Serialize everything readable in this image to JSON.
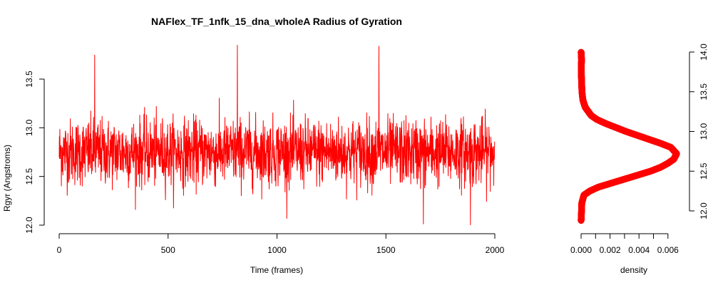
{
  "chart_data": [
    {
      "type": "line",
      "title": "NAFlex_TF_1nfk_15_dna_wholeA Radius of Gyration",
      "xlabel": "Time (frames)",
      "ylabel": "Rgyr (Angstroms)",
      "xlim": [
        0,
        2000
      ],
      "ylim": [
        12.0,
        13.85
      ],
      "x_ticks": [
        "0",
        "500",
        "1000",
        "1500",
        "2000"
      ],
      "y_ticks": [
        "12.0",
        "12.5",
        "13.0",
        "13.5"
      ],
      "series": [
        {
          "color": "#ff0000",
          "frames": 2000,
          "mean": 12.75,
          "min": 12.0,
          "max": 13.85,
          "peaks": [
            {
              "x": 163,
              "y": 13.75
            },
            {
              "x": 818,
              "y": 13.85
            },
            {
              "x": 1468,
              "y": 13.84
            },
            {
              "x": 1672,
              "y": 12.01
            },
            {
              "x": 1888,
              "y": 12.0
            }
          ]
        }
      ]
    },
    {
      "type": "line",
      "title": "",
      "xlabel": "density",
      "ylabel": "",
      "xlim": [
        0,
        0.0066
      ],
      "ylim": [
        11.88,
        14.0
      ],
      "x_ticks": [
        "0.000",
        "0.002",
        "0.004",
        "0.006"
      ],
      "y_ticks": [
        "12.0",
        "12.5",
        "13.0",
        "13.5",
        "14.0"
      ],
      "y_axis_side": "right",
      "series": [
        {
          "color": "#ff0000",
          "marker": "circle",
          "peak": {
            "y": 12.72,
            "density": 0.0066
          },
          "points": [
            {
              "y": 11.88,
              "density": 0.0
            },
            {
              "y": 12.0,
              "density": 3e-05
            },
            {
              "y": 12.1,
              "density": 5e-05
            },
            {
              "y": 12.2,
              "density": 0.0002
            },
            {
              "y": 12.25,
              "density": 0.0006
            },
            {
              "y": 12.3,
              "density": 0.0012
            },
            {
              "y": 12.35,
              "density": 0.0021
            },
            {
              "y": 12.4,
              "density": 0.003
            },
            {
              "y": 12.45,
              "density": 0.0039
            },
            {
              "y": 12.5,
              "density": 0.0048
            },
            {
              "y": 12.55,
              "density": 0.0055
            },
            {
              "y": 12.6,
              "density": 0.006
            },
            {
              "y": 12.65,
              "density": 0.0064
            },
            {
              "y": 12.72,
              "density": 0.0066
            },
            {
              "y": 12.8,
              "density": 0.0062
            },
            {
              "y": 12.85,
              "density": 0.0055
            },
            {
              "y": 12.9,
              "density": 0.0047
            },
            {
              "y": 12.95,
              "density": 0.0039
            },
            {
              "y": 13.0,
              "density": 0.0031
            },
            {
              "y": 13.05,
              "density": 0.0024
            },
            {
              "y": 13.1,
              "density": 0.0017
            },
            {
              "y": 13.15,
              "density": 0.0011
            },
            {
              "y": 13.2,
              "density": 0.0007
            },
            {
              "y": 13.25,
              "density": 0.0005
            },
            {
              "y": 13.3,
              "density": 0.0003
            },
            {
              "y": 13.35,
              "density": 0.0002
            },
            {
              "y": 13.4,
              "density": 0.00012
            },
            {
              "y": 13.5,
              "density": 6e-05
            },
            {
              "y": 13.6,
              "density": 4e-05
            },
            {
              "y": 13.7,
              "density": 2e-05
            },
            {
              "y": 13.8,
              "density": 1e-05
            },
            {
              "y": 13.9,
              "density": 3e-05
            },
            {
              "y": 14.0,
              "density": 0.0
            }
          ]
        }
      ]
    }
  ]
}
